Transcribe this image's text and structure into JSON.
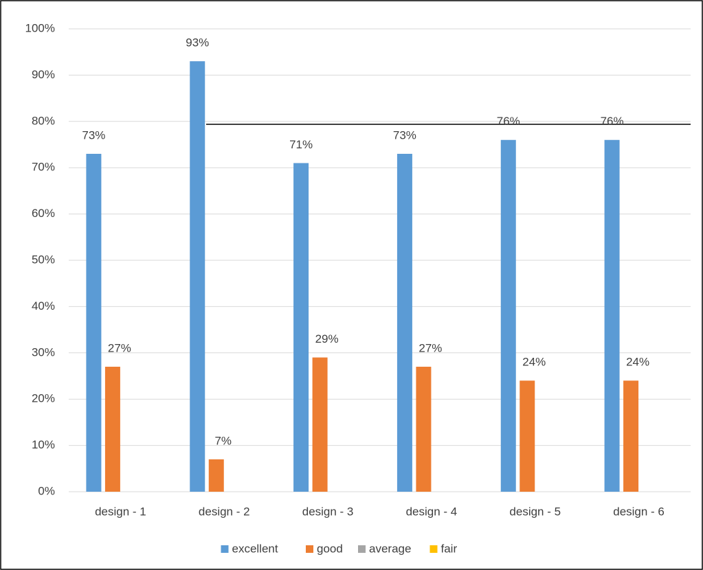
{
  "chart_data": {
    "type": "bar",
    "categories": [
      "design - 1",
      "design - 2",
      "design - 3",
      "design - 4",
      "design - 5",
      "design - 6"
    ],
    "series": [
      {
        "name": "excellent",
        "color": "#5b9bd5",
        "values": [
          73,
          93,
          71,
          73,
          76,
          76
        ],
        "value_labels": [
          "73%",
          "93%",
          "71%",
          "73%",
          "76%",
          "76%"
        ]
      },
      {
        "name": "good",
        "color": "#ed7d31",
        "values": [
          27,
          7,
          29,
          27,
          24,
          24
        ],
        "value_labels": [
          "27%",
          "7%",
          "29%",
          "27%",
          "24%",
          "24%"
        ]
      },
      {
        "name": "average",
        "color": "#a5a5a5",
        "values": [
          0,
          0,
          0,
          0,
          0,
          0
        ]
      },
      {
        "name": "fair",
        "color": "#ffc000",
        "values": [
          0,
          0,
          0,
          0,
          0,
          0
        ]
      }
    ],
    "ylim": [
      0,
      100
    ],
    "yticks": [
      {
        "value": 0,
        "label": "0%"
      },
      {
        "value": 10,
        "label": "10%"
      },
      {
        "value": 20,
        "label": "20%"
      },
      {
        "value": 30,
        "label": "30%"
      },
      {
        "value": 40,
        "label": "40%"
      },
      {
        "value": 50,
        "label": "50%"
      },
      {
        "value": 60,
        "label": "60%"
      },
      {
        "value": 70,
        "label": "70%"
      },
      {
        "value": 80,
        "label": "80%"
      },
      {
        "value": 90,
        "label": "90%"
      },
      {
        "value": 100,
        "label": "100%"
      }
    ],
    "grid": true,
    "legend": "bottom"
  }
}
